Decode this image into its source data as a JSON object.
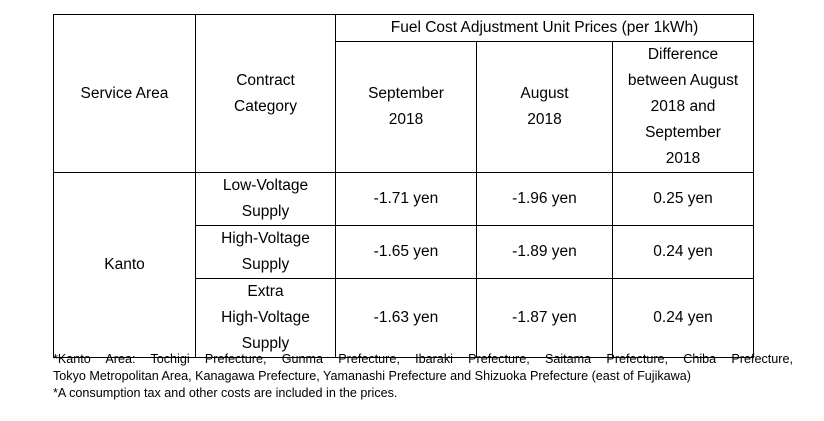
{
  "table": {
    "header": {
      "group_label": "Fuel Cost Adjustment Unit Prices (per 1kWh)",
      "service_area": "Service Area",
      "contract_category_line1": "Contract",
      "contract_category_line2": "Category",
      "september_line1": "September",
      "september_line2": "2018",
      "august_line1": "August",
      "august_line2": "2018",
      "difference_line1": "Difference",
      "difference_line2": "between August",
      "difference_line3": "2018 and",
      "difference_line4": "September",
      "difference_line5": "2018"
    },
    "area": "Kanto",
    "rows": [
      {
        "category_lines": [
          "Low-Voltage",
          "Supply"
        ],
        "september": "-1.71 yen",
        "august": "-1.96 yen",
        "difference": "0.25 yen"
      },
      {
        "category_lines": [
          "High-Voltage",
          "Supply"
        ],
        "september": "-1.65 yen",
        "august": "-1.89 yen",
        "difference": "0.24 yen"
      },
      {
        "category_lines": [
          "Extra",
          "High-Voltage",
          "Supply"
        ],
        "september": "-1.63 yen",
        "august": "-1.87 yen",
        "difference": "0.24 yen"
      }
    ]
  },
  "notes": {
    "kanto_line1": "*Kanto Area: Tochigi Prefecture, Gunma Prefecture, Ibaraki Prefecture, Saitama Prefecture, Chiba Prefecture,",
    "kanto_line2": "Tokyo Metropolitan Area, Kanagawa Prefecture, Yamanashi Prefecture and Shizuoka Prefecture (east of Fujikawa)",
    "tax": "*A consumption tax and other costs are included in the prices."
  }
}
